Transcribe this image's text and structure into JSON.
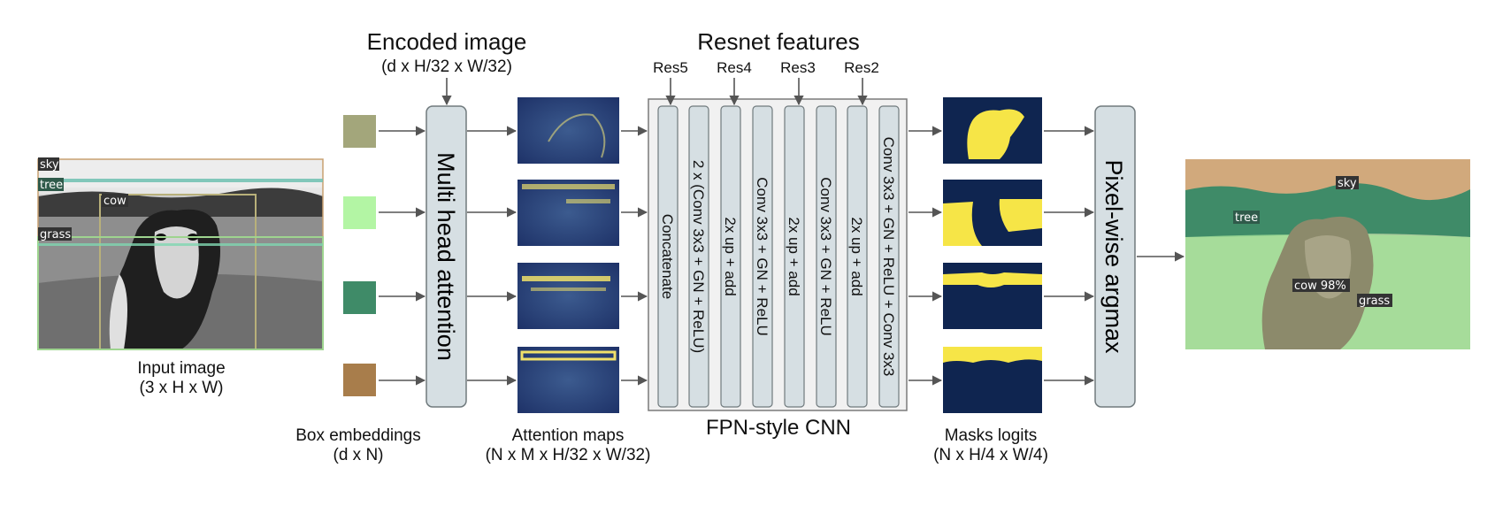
{
  "input": {
    "caption_line1": "Input image",
    "caption_line2": "(3 x H x W)",
    "box_labels": [
      "sky",
      "tree",
      "cow",
      "grass"
    ]
  },
  "embeddings": {
    "caption_line1": "Box embeddings",
    "caption_line2": "(d x N)",
    "colors": [
      "#a3a67b",
      "#b3f5a4",
      "#3f8b68",
      "#a87d4b"
    ]
  },
  "encoded": {
    "title": "Encoded image",
    "subtitle": "(d x H/32 x W/32)"
  },
  "mha": {
    "label": "Multi head attention"
  },
  "attention": {
    "caption_line1": "Attention maps",
    "caption_line2": "(N x M x H/32 x W/32)"
  },
  "resnet": {
    "title": "Resnet features",
    "inputs": [
      "Res5",
      "Res4",
      "Res3",
      "Res2"
    ]
  },
  "fpn": {
    "caption": "FPN-style CNN",
    "layers": [
      "Concatenate",
      "2 x (Conv 3x3 + GN + ReLU)",
      "2x up + add",
      "Conv 3x3 + GN + ReLU",
      "2x up + add",
      "Conv 3x3 + GN + ReLU",
      "2x up + add",
      "Conv 3x3 + GN + ReLU + Conv 3x3"
    ]
  },
  "masks": {
    "caption_line1": "Masks logits",
    "caption_line2": "(N x H/4 x W/4)"
  },
  "argmax": {
    "label": "Pixel-wise argmax"
  },
  "output": {
    "labels": [
      "sky",
      "tree",
      "cow 98%",
      "grass"
    ]
  },
  "colors": {
    "panel_fill": "#d6dfe3",
    "panel_stroke": "#707a7d",
    "arrow": "#555555",
    "mask_bg": "#0f2550",
    "mask_fg": "#f6e547"
  }
}
